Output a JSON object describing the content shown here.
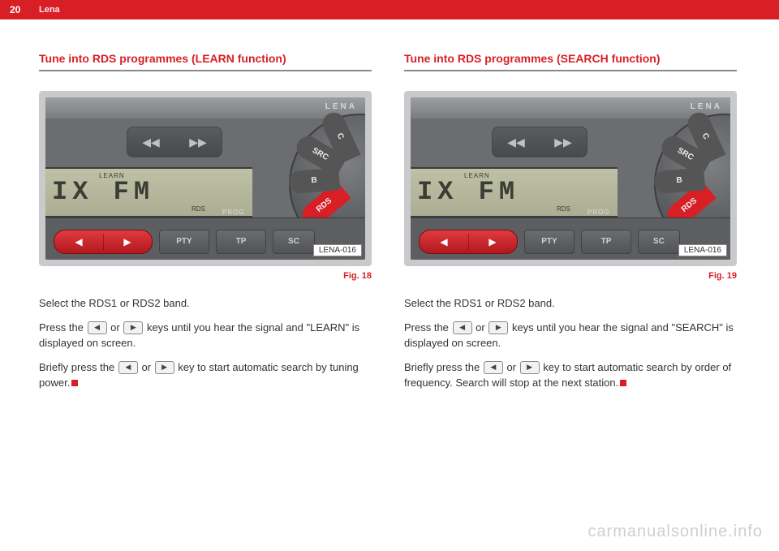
{
  "page_number": "20",
  "brand": "Lena",
  "watermark": "carmanualsonline.info",
  "icons": {
    "triangle_left": "◀",
    "triangle_right": "▶",
    "rewind": "◀◀",
    "forward": "▶▶"
  },
  "radio_panel": {
    "logo": "LENA",
    "display_small": "LEARN",
    "display_main": "IX FM",
    "display_rds": "RDS",
    "prog_label": "PROG",
    "buttons": {
      "pty": "PTY",
      "tp": "TP",
      "sc": "SC"
    },
    "dial": {
      "rds": "RDS",
      "bnd": "B",
      "src": "SRC",
      "c": "C"
    },
    "code": "LENA-016"
  },
  "left": {
    "heading": "Tune into RDS programmes (LEARN function)",
    "fig": "Fig. 18",
    "p1": "Select the RDS1 or RDS2 band.",
    "p2a": "Press the ",
    "p2b": " or ",
    "p2c": " keys until you hear the signal and \"LEARN\" is displayed on screen.",
    "p3a": "Briefly press the ",
    "p3b": " or ",
    "p3c": " key to start automatic search by tuning power."
  },
  "right": {
    "heading": "Tune into RDS programmes (SEARCH function)",
    "fig": "Fig. 19",
    "p1": "Select the RDS1 or RDS2 band.",
    "p2a": "Press the ",
    "p2b": " or ",
    "p2c": " keys until you hear the signal and \"SEARCH\" is displayed on screen.",
    "p3a": "Briefly press the ",
    "p3b": " or ",
    "p3c": " key to start automatic search by order of frequency. Search will stop at the next station."
  }
}
